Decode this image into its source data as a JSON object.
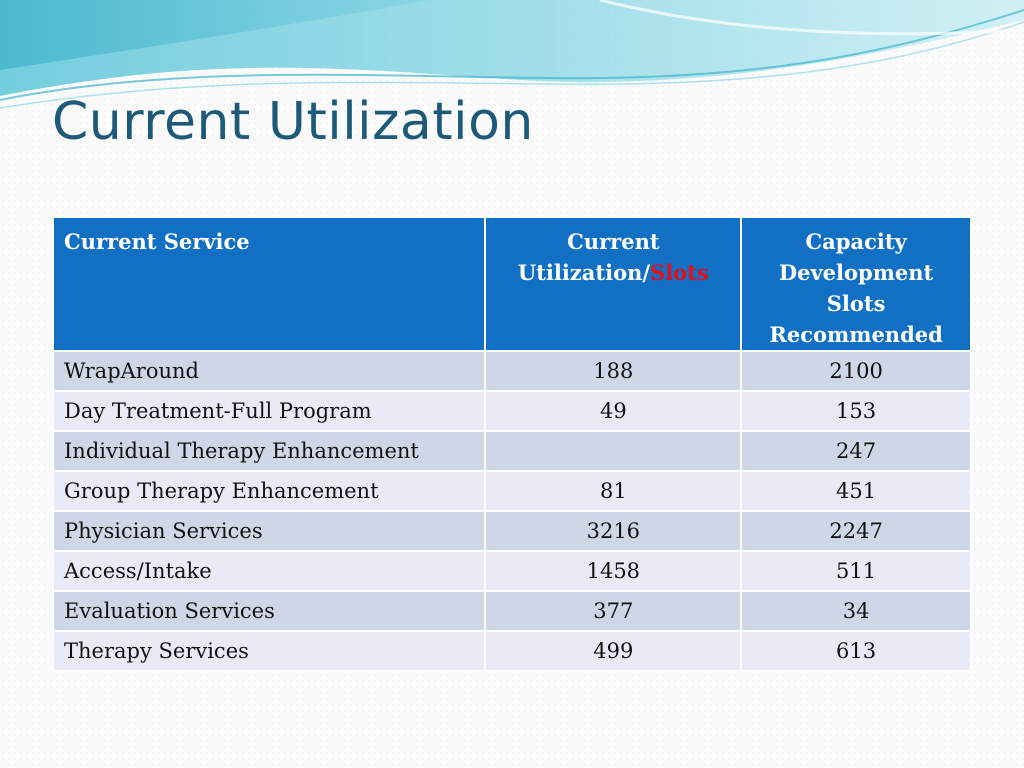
{
  "slide": {
    "title": "Current Utilization"
  },
  "theme": {
    "title_color": "#1d5a7a",
    "header_bg": "#1270c4",
    "row_band_dark": "#cfd6e8",
    "row_band_light": "#e8ebf5",
    "highlight_red": "#e0101a"
  },
  "table": {
    "headers": {
      "col1": "Current Service",
      "col2_line1": "Current",
      "col2_line2_prefix": "Utilization/",
      "col2_line2_highlight": "Slots",
      "col3_line1": "Capacity",
      "col3_line2": "Development",
      "col3_line3": "Slots",
      "col3_line4": "Recommended"
    },
    "rows": [
      {
        "service": "WrapAround",
        "current": "188",
        "recommended": "2100"
      },
      {
        "service": "Day Treatment-Full Program",
        "current": "49",
        "recommended": "153"
      },
      {
        "service": "Individual Therapy Enhancement",
        "current": "",
        "recommended": "247"
      },
      {
        "service": "Group Therapy Enhancement",
        "current": "81",
        "recommended": "451"
      },
      {
        "service": "Physician Services",
        "current": "3216",
        "recommended": "2247"
      },
      {
        "service": "Access/Intake",
        "current": "1458",
        "recommended": "511"
      },
      {
        "service": "Evaluation Services",
        "current": "377",
        "recommended": "34"
      },
      {
        "service": "Therapy Services",
        "current": "499",
        "recommended": "613"
      }
    ]
  }
}
